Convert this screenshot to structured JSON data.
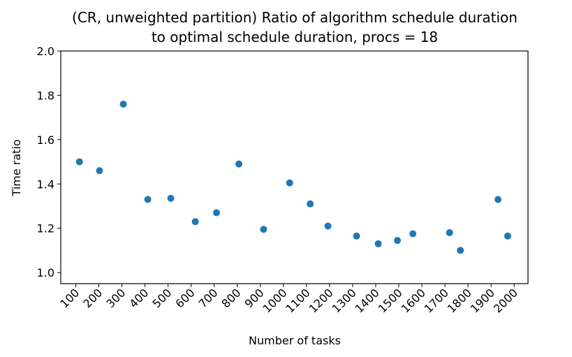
{
  "chart_data": {
    "type": "scatter",
    "title": [
      "(CR, unweighted partition) Ratio of algorithm schedule duration",
      "to optimal schedule duration, procs = 18"
    ],
    "xlabel": "Number of tasks",
    "ylabel": "Time ratio",
    "xlim": [
      35,
      2060
    ],
    "ylim": [
      0.95,
      2.0
    ],
    "x_ticks": [
      100,
      200,
      300,
      400,
      500,
      600,
      700,
      800,
      900,
      1000,
      1100,
      1200,
      1300,
      1400,
      1500,
      1600,
      1700,
      1800,
      1900,
      2000
    ],
    "y_ticks": [
      "1.0",
      "1.2",
      "1.4",
      "1.6",
      "1.8",
      "2.0"
    ],
    "grid": false,
    "marker_color": "#1f77b4",
    "points": [
      {
        "x": 116,
        "y": 1.5
      },
      {
        "x": 203,
        "y": 1.46
      },
      {
        "x": 306,
        "y": 1.76
      },
      {
        "x": 412,
        "y": 1.33
      },
      {
        "x": 512,
        "y": 1.335
      },
      {
        "x": 618,
        "y": 1.23
      },
      {
        "x": 710,
        "y": 1.27
      },
      {
        "x": 807,
        "y": 1.49
      },
      {
        "x": 914,
        "y": 1.195
      },
      {
        "x": 1027,
        "y": 1.405
      },
      {
        "x": 1116,
        "y": 1.31
      },
      {
        "x": 1193,
        "y": 1.21
      },
      {
        "x": 1317,
        "y": 1.165
      },
      {
        "x": 1411,
        "y": 1.13
      },
      {
        "x": 1494,
        "y": 1.145
      },
      {
        "x": 1561,
        "y": 1.175
      },
      {
        "x": 1720,
        "y": 1.18
      },
      {
        "x": 1767,
        "y": 1.1
      },
      {
        "x": 1930,
        "y": 1.33
      },
      {
        "x": 1972,
        "y": 1.165
      }
    ]
  }
}
